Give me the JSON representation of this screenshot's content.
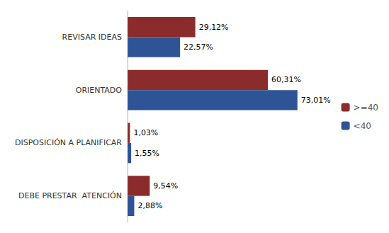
{
  "chart_data": {
    "type": "bar",
    "orientation": "horizontal",
    "categories": [
      "REVISAR IDEAS",
      "ORIENTADO",
      "DISPOSICIÓN A PLANIFICAR",
      "DEBE PRESTAR  ATENCIÓN"
    ],
    "series": [
      {
        "name": ">=40",
        "color": "#8B2B2B",
        "values": [
          29.12,
          60.31,
          1.03,
          9.54
        ],
        "value_labels": [
          "29,12%",
          "60,31%",
          "1,03%",
          "9,54%"
        ]
      },
      {
        "name": "<40",
        "color": "#2E5496",
        "values": [
          22.57,
          73.01,
          1.55,
          2.88
        ],
        "value_labels": [
          "22,57%",
          "73,01%",
          "1,55%",
          "2,88%"
        ]
      }
    ],
    "xlim": [
      0,
      88
    ],
    "data_labels": true,
    "tick_labels": "y",
    "legend": "right",
    "grid": false
  }
}
